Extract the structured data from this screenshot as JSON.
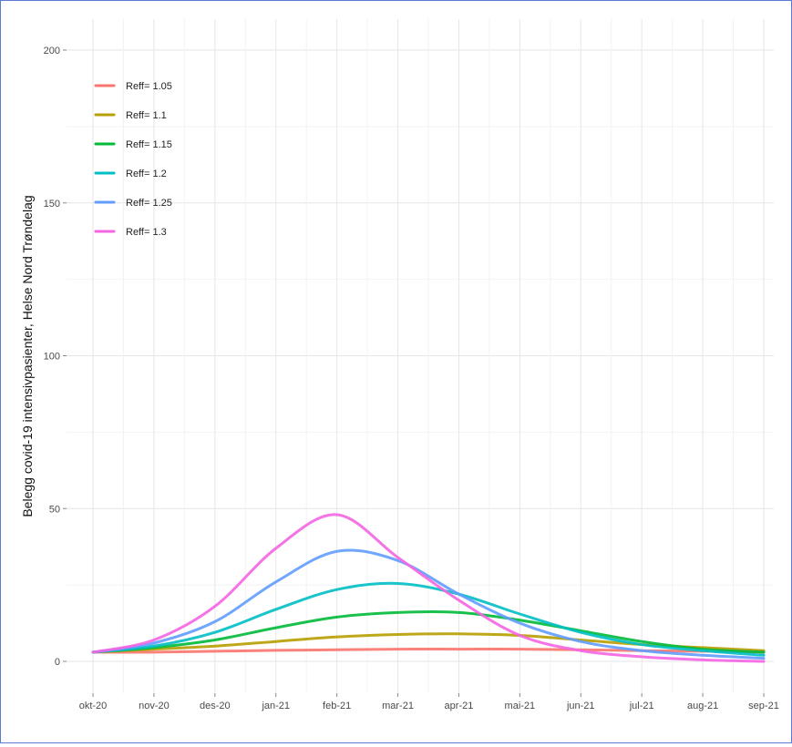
{
  "chart_data": {
    "type": "line",
    "title": "",
    "xlabel": "",
    "ylabel": "Belegg covid-19 intensivpasienter, Helse Nord Trøndelag",
    "ylim": [
      0,
      200
    ],
    "yticks": [
      0,
      50,
      100,
      150,
      200
    ],
    "x_ticks": [
      "okt-20",
      "nov-20",
      "des-20",
      "jan-21",
      "feb-21",
      "mar-21",
      "apr-21",
      "mai-21",
      "jun-21",
      "jul-21",
      "aug-21",
      "sep-21"
    ],
    "x": [
      "okt-20",
      "nov-20",
      "des-20",
      "jan-21",
      "feb-21",
      "mar-21",
      "apr-21",
      "mai-21",
      "jun-21",
      "jul-21",
      "aug-21",
      "sep-21"
    ],
    "grid": true,
    "legend_position": "top-left",
    "series": [
      {
        "name": "Reff= 1.05",
        "color": "#f8766d",
        "values": [
          3,
          3,
          3.3,
          3.6,
          3.8,
          4,
          4,
          4,
          3.8,
          3.5,
          3.3,
          3
        ]
      },
      {
        "name": "Reff= 1.1",
        "color": "#b79f00",
        "values": [
          3,
          4,
          5,
          6.5,
          8,
          8.8,
          9,
          8.5,
          7,
          5.5,
          4.5,
          3.5
        ]
      },
      {
        "name": "Reff= 1.15",
        "color": "#00ba38",
        "values": [
          3,
          4.5,
          7,
          11,
          14.5,
          16,
          16,
          13.5,
          10,
          6.5,
          4,
          3
        ]
      },
      {
        "name": "Reff= 1.2",
        "color": "#00bfc4",
        "values": [
          3,
          5,
          9.5,
          17,
          23.5,
          25.5,
          22,
          15.5,
          9.5,
          5.5,
          3.5,
          2
        ]
      },
      {
        "name": "Reff= 1.25",
        "color": "#619cff",
        "values": [
          3,
          6,
          13,
          26,
          36,
          33,
          22,
          12.5,
          6.5,
          3.5,
          2,
          1
        ]
      },
      {
        "name": "Reff= 1.3",
        "color": "#f564e3",
        "values": [
          3,
          7,
          18,
          37,
          48,
          34,
          20,
          8.5,
          3.5,
          1.5,
          0.5,
          0
        ]
      }
    ]
  }
}
